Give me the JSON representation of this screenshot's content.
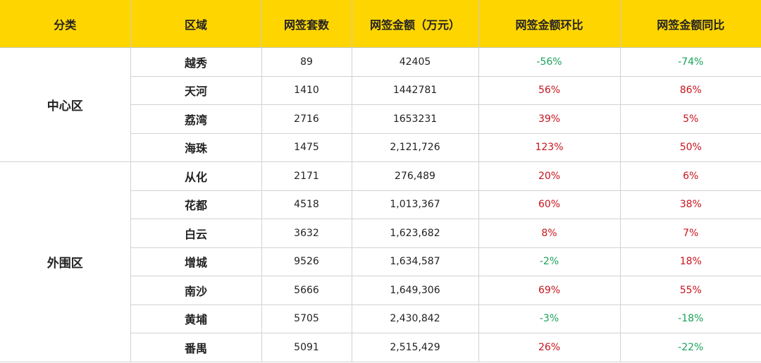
{
  "headers": [
    "分类",
    "区域",
    "网签套数",
    "网签金额（万元）",
    "网签金额环比",
    "网签金额同比"
  ],
  "groups": [
    {
      "name": "中心区",
      "rows": [
        {
          "region": "越秀",
          "units": "89",
          "amount": "42405",
          "mom": "-56%",
          "mom_dir": "neg",
          "yoy": "-74%",
          "yoy_dir": "neg"
        },
        {
          "region": "天河",
          "units": "1410",
          "amount": "1442781",
          "mom": "56%",
          "mom_dir": "pos",
          "yoy": "86%",
          "yoy_dir": "pos"
        },
        {
          "region": "荔湾",
          "units": "2716",
          "amount": "1653231",
          "mom": "39%",
          "mom_dir": "pos",
          "yoy": "5%",
          "yoy_dir": "pos"
        },
        {
          "region": "海珠",
          "units": "1475",
          "amount": "2,121,726",
          "mom": "123%",
          "mom_dir": "pos",
          "yoy": "50%",
          "yoy_dir": "pos"
        }
      ]
    },
    {
      "name": "外围区",
      "rows": [
        {
          "region": "从化",
          "units": "2171",
          "amount": "276,489",
          "mom": "20%",
          "mom_dir": "pos",
          "yoy": "6%",
          "yoy_dir": "pos"
        },
        {
          "region": "花都",
          "units": "4518",
          "amount": "1,013,367",
          "mom": "60%",
          "mom_dir": "pos",
          "yoy": "38%",
          "yoy_dir": "pos"
        },
        {
          "region": "白云",
          "units": "3632",
          "amount": "1,623,682",
          "mom": "8%",
          "mom_dir": "pos",
          "yoy": "7%",
          "yoy_dir": "pos"
        },
        {
          "region": "增城",
          "units": "9526",
          "amount": "1,634,587",
          "mom": "-2%",
          "mom_dir": "neg",
          "yoy": "18%",
          "yoy_dir": "pos"
        },
        {
          "region": "南沙",
          "units": "5666",
          "amount": "1,649,306",
          "mom": "69%",
          "mom_dir": "pos",
          "yoy": "55%",
          "yoy_dir": "pos"
        },
        {
          "region": "黄埔",
          "units": "5705",
          "amount": "2,430,842",
          "mom": "-3%",
          "mom_dir": "neg",
          "yoy": "-18%",
          "yoy_dir": "neg"
        },
        {
          "region": "番禺",
          "units": "5091",
          "amount": "2,515,429",
          "mom": "26%",
          "mom_dir": "pos",
          "yoy": "-22%",
          "yoy_dir": "neg"
        }
      ]
    }
  ],
  "colors": {
    "header_bg": "#ffd500",
    "positive": "#c8141e",
    "negative": "#1aa35a"
  }
}
